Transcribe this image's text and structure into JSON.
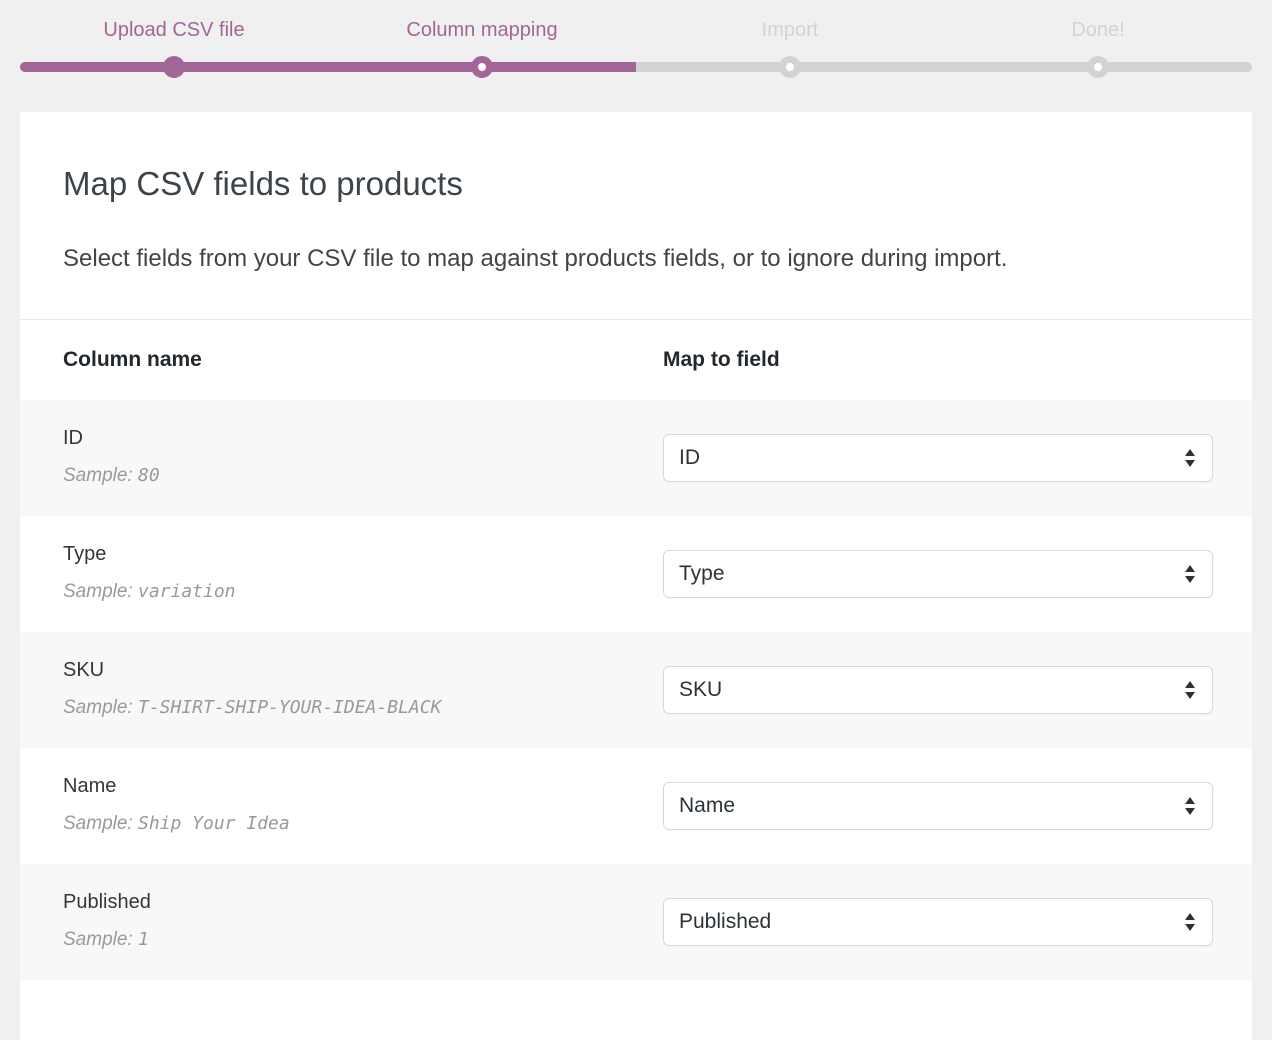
{
  "steps": [
    {
      "label": "Upload CSV file",
      "state": "done"
    },
    {
      "label": "Column mapping",
      "state": "active"
    },
    {
      "label": "Import",
      "state": "upcoming"
    },
    {
      "label": "Done!",
      "state": "upcoming"
    }
  ],
  "progress": {
    "fill_percent": 50
  },
  "header": {
    "title": "Map CSV fields to products",
    "description": "Select fields from your CSV file to map against products fields, or to ignore during import."
  },
  "table": {
    "columns": [
      "Column name",
      "Map to field"
    ],
    "sample_prefix": "Sample:",
    "rows": [
      {
        "name": "ID",
        "sample": "80",
        "mapped": "ID"
      },
      {
        "name": "Type",
        "sample": "variation",
        "mapped": "Type"
      },
      {
        "name": "SKU",
        "sample": "T-SHIRT-SHIP-YOUR-IDEA-BLACK",
        "mapped": "SKU"
      },
      {
        "name": "Name",
        "sample": "Ship Your Idea",
        "mapped": "Name"
      },
      {
        "name": "Published",
        "sample": "1",
        "mapped": "Published"
      }
    ]
  },
  "colors": {
    "accent_purple": "#a16696",
    "inactive_gray": "#d3d3d5",
    "page_background": "#f0f0f1",
    "card_background": "#ffffff",
    "row_stripe": "#f8f8f9",
    "sample_text": "#999999"
  }
}
